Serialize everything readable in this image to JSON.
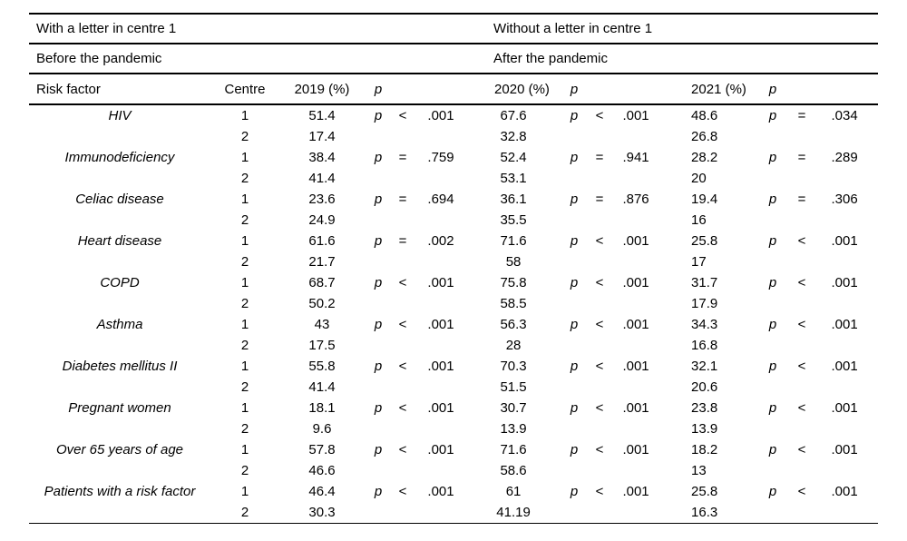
{
  "table": {
    "group_headers": {
      "left": "With a letter in centre 1",
      "right": "Without a letter in centre 1"
    },
    "period_headers": {
      "left": "Before the pandemic",
      "right": "After the pandemic"
    },
    "columns": {
      "risk_factor": "Risk factor",
      "centre": "Centre",
      "y2019": "2019 (%)",
      "p2019": "p",
      "y2020": "2020 (%)",
      "p2020": "p",
      "y2021": "2021 (%)",
      "p2021": "p"
    },
    "rows": [
      {
        "risk_factor": "HIV",
        "centre1": {
          "centre": "1",
          "y2019": "51.4",
          "y2020": "67.6",
          "y2021": "48.6"
        },
        "centre2": {
          "centre": "2",
          "y2019": "17.4",
          "y2020": "32.8",
          "y2021": "26.8"
        },
        "p2019": {
          "label": "p",
          "op": "<",
          "value": ".001"
        },
        "p2020": {
          "label": "p",
          "op": "<",
          "value": ".001"
        },
        "p2021": {
          "label": "p",
          "op": "=",
          "value": ".034"
        }
      },
      {
        "risk_factor": "Immunodeficiency",
        "centre1": {
          "centre": "1",
          "y2019": "38.4",
          "y2020": "52.4",
          "y2021": "28.2"
        },
        "centre2": {
          "centre": "2",
          "y2019": "41.4",
          "y2020": "53.1",
          "y2021": "20"
        },
        "p2019": {
          "label": "p",
          "op": "=",
          "value": ".759"
        },
        "p2020": {
          "label": "p",
          "op": "=",
          "value": ".941"
        },
        "p2021": {
          "label": "p",
          "op": "=",
          "value": ".289"
        }
      },
      {
        "risk_factor": "Celiac disease",
        "centre1": {
          "centre": "1",
          "y2019": "23.6",
          "y2020": "36.1",
          "y2021": "19.4"
        },
        "centre2": {
          "centre": "2",
          "y2019": "24.9",
          "y2020": "35.5",
          "y2021": "16"
        },
        "p2019": {
          "label": "p",
          "op": "=",
          "value": ".694"
        },
        "p2020": {
          "label": "p",
          "op": "=",
          "value": ".876"
        },
        "p2021": {
          "label": "p",
          "op": "=",
          "value": ".306"
        }
      },
      {
        "risk_factor": "Heart disease",
        "centre1": {
          "centre": "1",
          "y2019": "61.6",
          "y2020": "71.6",
          "y2021": "25.8"
        },
        "centre2": {
          "centre": "2",
          "y2019": "21.7",
          "y2020": "58",
          "y2021": "17"
        },
        "p2019": {
          "label": "p",
          "op": "=",
          "value": ".002"
        },
        "p2020": {
          "label": "p",
          "op": "<",
          "value": ".001"
        },
        "p2021": {
          "label": "p",
          "op": "<",
          "value": ".001"
        }
      },
      {
        "risk_factor": "COPD",
        "centre1": {
          "centre": "1",
          "y2019": "68.7",
          "y2020": "75.8",
          "y2021": "31.7"
        },
        "centre2": {
          "centre": "2",
          "y2019": "50.2",
          "y2020": "58.5",
          "y2021": "17.9"
        },
        "p2019": {
          "label": "p",
          "op": "<",
          "value": ".001"
        },
        "p2020": {
          "label": "p",
          "op": "<",
          "value": ".001"
        },
        "p2021": {
          "label": "p",
          "op": "<",
          "value": ".001"
        }
      },
      {
        "risk_factor": "Asthma",
        "centre1": {
          "centre": "1",
          "y2019": "43",
          "y2020": "56.3",
          "y2021": "34.3"
        },
        "centre2": {
          "centre": "2",
          "y2019": "17.5",
          "y2020": "28",
          "y2021": "16.8"
        },
        "p2019": {
          "label": "p",
          "op": "<",
          "value": ".001"
        },
        "p2020": {
          "label": "p",
          "op": "<",
          "value": ".001"
        },
        "p2021": {
          "label": "p",
          "op": "<",
          "value": ".001"
        }
      },
      {
        "risk_factor": "Diabetes mellitus II",
        "centre1": {
          "centre": "1",
          "y2019": "55.8",
          "y2020": "70.3",
          "y2021": "32.1"
        },
        "centre2": {
          "centre": "2",
          "y2019": "41.4",
          "y2020": "51.5",
          "y2021": "20.6"
        },
        "p2019": {
          "label": "p",
          "op": "<",
          "value": ".001"
        },
        "p2020": {
          "label": "p",
          "op": "<",
          "value": ".001"
        },
        "p2021": {
          "label": "p",
          "op": "<",
          "value": ".001"
        }
      },
      {
        "risk_factor": "Pregnant women",
        "centre1": {
          "centre": "1",
          "y2019": "18.1",
          "y2020": "30.7",
          "y2021": "23.8"
        },
        "centre2": {
          "centre": "2",
          "y2019": "9.6",
          "y2020": "13.9",
          "y2021": "13.9"
        },
        "p2019": {
          "label": "p",
          "op": "<",
          "value": ".001"
        },
        "p2020": {
          "label": "p",
          "op": "<",
          "value": ".001"
        },
        "p2021": {
          "label": "p",
          "op": "<",
          "value": ".001"
        }
      },
      {
        "risk_factor": "Over 65 years of age",
        "centre1": {
          "centre": "1",
          "y2019": "57.8",
          "y2020": "71.6",
          "y2021": "18.2"
        },
        "centre2": {
          "centre": "2",
          "y2019": "46.6",
          "y2020": "58.6",
          "y2021": "13"
        },
        "p2019": {
          "label": "p",
          "op": "<",
          "value": ".001"
        },
        "p2020": {
          "label": "p",
          "op": "<",
          "value": ".001"
        },
        "p2021": {
          "label": "p",
          "op": "<",
          "value": ".001"
        }
      },
      {
        "risk_factor": "Patients with a risk factor",
        "centre1": {
          "centre": "1",
          "y2019": "46.4",
          "y2020": "61",
          "y2021": "25.8"
        },
        "centre2": {
          "centre": "2",
          "y2019": "30.3",
          "y2020": "41.19",
          "y2021": "16.3"
        },
        "p2019": {
          "label": "p",
          "op": "<",
          "value": ".001"
        },
        "p2020": {
          "label": "p",
          "op": "<",
          "value": ".001"
        },
        "p2021": {
          "label": "p",
          "op": "<",
          "value": ".001"
        }
      }
    ]
  },
  "colors": {
    "text": "#000000",
    "background": "#ffffff",
    "rule": "#000000"
  }
}
